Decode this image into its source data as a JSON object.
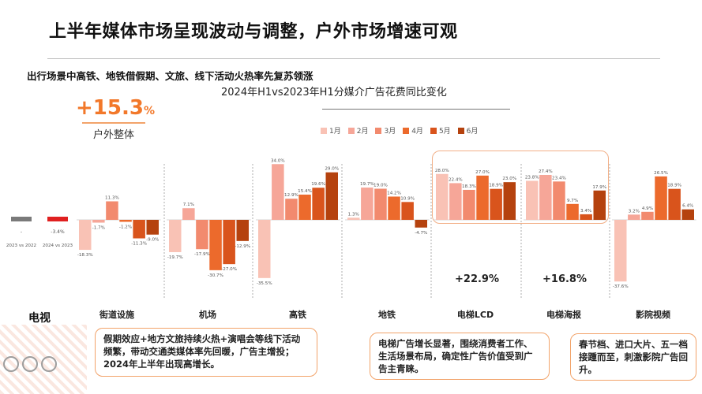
{
  "header": {
    "title": "上半年媒体市场呈现波动与调整，户外市场增速可观",
    "subtitle": "出行场景中高铁、地铁借假期、文旅、线下活动火热率先复苏领涨"
  },
  "kpi": {
    "value": "+15.3",
    "unit": "%",
    "label": "户外整体"
  },
  "tv": {
    "label": "电视",
    "points": [
      {
        "label": "2023 vs 2022",
        "value": "-",
        "color": "#7a7a7a"
      },
      {
        "label": "2024 vs 2023",
        "value": "-3.4%",
        "color": "#e02020"
      }
    ]
  },
  "big_numbers": [
    {
      "category": "电梯LCD",
      "text": "+22.9%"
    },
    {
      "category": "电梯海报",
      "text": "+16.8%"
    }
  ],
  "callouts": [
    {
      "text": "假期效应+地方文旅持续火热+演唱会等线下活动频繁，带动交通类媒体率先回暖，广告主增投；2024年上半年出现高增长。"
    },
    {
      "text": "电梯广告增长显著，围绕消费者工作、生活场景布局，确定性广告价值受到广告主青睐。"
    },
    {
      "text": "春节档、进口大片、五一档接踵而至，刺激影院广告回升。"
    }
  ],
  "chart_data": {
    "type": "bar",
    "title": "2024年H1vs2023年H1分媒介广告花费同比变化",
    "legend_position": "top",
    "categories": [
      "街道设施",
      "机场",
      "高铁",
      "地铁",
      "电梯LCD",
      "电梯海报",
      "影院视频"
    ],
    "series": [
      {
        "name": "1月",
        "color": "#f9c2b5",
        "values": [
          -18.3,
          -19.7,
          -35.5,
          1.3,
          28.0,
          23.8,
          -37.6
        ]
      },
      {
        "name": "2月",
        "color": "#f6a698",
        "values": [
          -1.7,
          7.1,
          34.0,
          19.7,
          22.4,
          27.4,
          3.2
        ]
      },
      {
        "name": "3月",
        "color": "#f28a6e",
        "values": [
          11.3,
          -17.9,
          12.9,
          19.0,
          18.3,
          23.4,
          4.9
        ]
      },
      {
        "name": "4月",
        "color": "#ec6a2c",
        "values": [
          -1.2,
          -30.7,
          15.4,
          14.2,
          27.0,
          9.7,
          26.5
        ]
      },
      {
        "name": "5月",
        "color": "#d9541c",
        "values": [
          -11.3,
          -27.0,
          19.6,
          10.9,
          18.9,
          3.4,
          18.9
        ]
      },
      {
        "name": "6月",
        "color": "#b5420e",
        "values": [
          -9.0,
          -12.9,
          29.0,
          -4.7,
          23.0,
          17.9,
          6.4
        ]
      }
    ],
    "value_labels": [
      [
        "-18.3%",
        "-1.7%",
        "11.3%",
        "-1.2%",
        "-11.3%",
        "-9.0%"
      ],
      [
        "-19.7%",
        "7.1%",
        "-17.9%",
        "-30.7%",
        "-27.0%",
        "-12.9%"
      ],
      [
        "-35.5%",
        "34.0%",
        "12.9%",
        "15.4%",
        "19.6%",
        "29.0%"
      ],
      [
        "1.3%",
        "19.7%",
        "19.0%",
        "14.2%",
        "10.9%",
        "-4.7%"
      ],
      [
        "28.0%",
        "22.4%",
        "18.3%",
        "27.0%",
        "18.9%",
        "23.0%"
      ],
      [
        "23.8%",
        "27.4%",
        "23.4%",
        "9.7%",
        "3.4%",
        "17.9%"
      ],
      [
        "-37.6%",
        "3.2%",
        "4.9%",
        "26.5%",
        "18.9%",
        "6.4%"
      ]
    ],
    "legend": [
      "1月",
      "2月",
      "3月",
      "4月",
      "5月",
      "6月"
    ]
  }
}
